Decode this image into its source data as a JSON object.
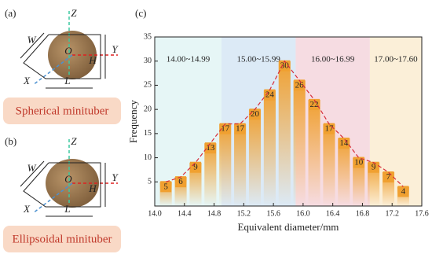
{
  "panels": [
    {
      "tag": "(a)",
      "z": "Z",
      "y": "Y",
      "x": "X",
      "w": "W",
      "h": "H",
      "l": "L",
      "o": "O",
      "caption": "Spherical minituber"
    },
    {
      "tag": "(b)",
      "z": "Z",
      "y": "Y",
      "x": "X",
      "w": "W",
      "h": "H",
      "l": "L",
      "o": "O",
      "caption": "Ellipsoidal minituber"
    }
  ],
  "chart_data": {
    "type": "bar",
    "panel_label": "(c)",
    "xlabel": "Equivalent diameter/mm",
    "ylabel": "Frequency",
    "x": [
      14.15,
      14.35,
      14.55,
      14.75,
      14.95,
      15.15,
      15.35,
      15.55,
      15.75,
      15.95,
      16.15,
      16.35,
      16.55,
      16.75,
      16.95,
      17.15,
      17.35
    ],
    "values": [
      5,
      6,
      9,
      13,
      17,
      17,
      20,
      24,
      30,
      26,
      22,
      17,
      14,
      10,
      9,
      7,
      4
    ],
    "color": "#f0a030",
    "trend_color": "#d62d3a",
    "xlim": [
      14.0,
      17.6
    ],
    "xticks": [
      {
        "value": 14.0,
        "label": "14.0"
      },
      {
        "value": 14.4,
        "label": "14.4"
      },
      {
        "value": 14.8,
        "label": "14.8"
      },
      {
        "value": 15.2,
        "label": "15.2"
      },
      {
        "value": 15.6,
        "label": "15.6"
      },
      {
        "value": 16.0,
        "label": "16.0"
      },
      {
        "value": 16.4,
        "label": "16.4"
      },
      {
        "value": 16.8,
        "label": "16.8"
      },
      {
        "value": 17.2,
        "label": "17.2"
      },
      {
        "value": 17.6,
        "label": "17.6"
      }
    ],
    "ylim": [
      0,
      35
    ],
    "yticks": [
      5,
      10,
      15,
      20,
      25,
      30,
      35
    ],
    "regions": [
      {
        "label": "14.00~14.99",
        "range": [
          14.0,
          14.9
        ],
        "color": "#e6f6f6"
      },
      {
        "label": "15.00~15.99",
        "range": [
          14.9,
          15.9
        ],
        "color": "#dceaf6"
      },
      {
        "label": "16.00~16.99",
        "range": [
          15.9,
          16.9
        ],
        "color": "#f6dce2"
      },
      {
        "label": "17.00~17.60",
        "range": [
          16.9,
          17.6
        ],
        "color": "#fbefd8"
      }
    ]
  }
}
